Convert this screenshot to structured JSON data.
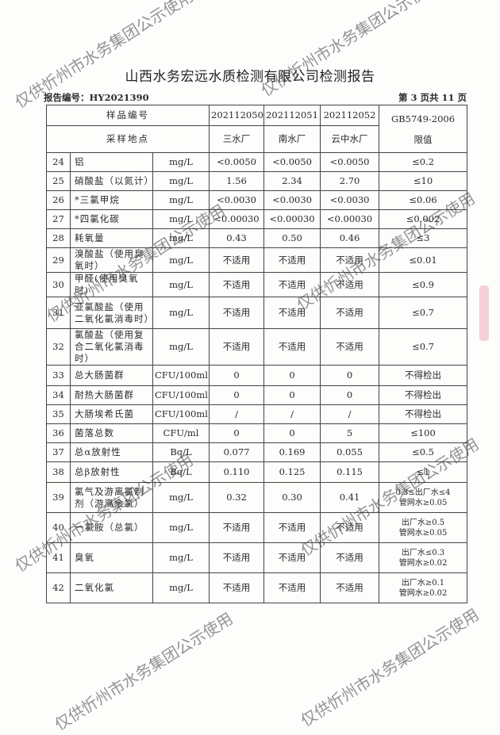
{
  "title": "山西水务宏远水质检测有限公司检测报告",
  "report_no": "报告编号：HY2021390",
  "page_no": "第 3 页共 11 页",
  "watermark": "仅供忻州市水务集团公示使用",
  "header": {
    "sample_no_label": "样品编号",
    "location_label": "采样地点",
    "samples": [
      "202112050",
      "202112051",
      "202112052"
    ],
    "locations": [
      "三水厂",
      "南水厂",
      "云中水厂"
    ],
    "limit_label": "GB5749-2006 限值"
  },
  "rows": [
    {
      "no": "24",
      "item": "铝",
      "unit": "mg/L",
      "v": [
        "<0.0050",
        "<0.0050",
        "<0.0050"
      ],
      "limit": "≤0.2"
    },
    {
      "no": "25",
      "item": "硝酸盐（以氮计）",
      "unit": "mg/L",
      "v": [
        "1.56",
        "2.34",
        "2.70"
      ],
      "limit": "≤10"
    },
    {
      "no": "26",
      "item": "*三氯甲烷",
      "unit": "mg/L",
      "v": [
        "<0.0030",
        "<0.0030",
        "<0.0030"
      ],
      "limit": "≤0.06"
    },
    {
      "no": "27",
      "item": "*四氯化碳",
      "unit": "mg/L",
      "v": [
        "<0.00030",
        "<0.00030",
        "<0.00030"
      ],
      "limit": "≤0.002"
    },
    {
      "no": "28",
      "item": "耗氧量",
      "unit": "mg/L",
      "v": [
        "0.43",
        "0.50",
        "0.46"
      ],
      "limit": "≤3"
    },
    {
      "no": "29",
      "item": "溴酸盐（使用臭氧时）",
      "unit": "mg/L",
      "v": [
        "不适用",
        "不适用",
        "不适用"
      ],
      "limit": "≤0.01"
    },
    {
      "no": "30",
      "item": "甲醛(使用臭氧时)",
      "unit": "mg/L",
      "v": [
        "不适用",
        "不适用",
        "不适用"
      ],
      "limit": "≤0.9"
    },
    {
      "no": "31",
      "item": "亚氯酸盐（使用二氧化氯消毒时）",
      "unit": "mg/L",
      "v": [
        "不适用",
        "不适用",
        "不适用"
      ],
      "limit": "≤0.7"
    },
    {
      "no": "32",
      "item": "氯酸盐（使用复合二氧化氯消毒时）",
      "unit": "mg/L",
      "v": [
        "不适用",
        "不适用",
        "不适用"
      ],
      "limit": "≤0.7"
    },
    {
      "no": "33",
      "item": "总大肠菌群",
      "unit": "CFU/100ml",
      "v": [
        "0",
        "0",
        "0"
      ],
      "limit": "不得检出"
    },
    {
      "no": "34",
      "item": "耐热大肠菌群",
      "unit": "CFU/100ml",
      "v": [
        "0",
        "0",
        "0"
      ],
      "limit": "不得检出"
    },
    {
      "no": "35",
      "item": "大肠埃希氏菌",
      "unit": "CFU/100ml",
      "v": [
        "/",
        "/",
        "/"
      ],
      "limit": "不得检出"
    },
    {
      "no": "36",
      "item": "菌落总数",
      "unit": "CFU/ml",
      "v": [
        "0",
        "0",
        "5"
      ],
      "limit": "≤100"
    },
    {
      "no": "37",
      "item": "总α放射性",
      "unit": "Bq/L",
      "v": [
        "0.077",
        "0.169",
        "0.055"
      ],
      "limit": "≤0.5"
    },
    {
      "no": "38",
      "item": "总β放射性",
      "unit": "Bq/L",
      "v": [
        "0.110",
        "0.125",
        "0.115"
      ],
      "limit": "≤1"
    },
    {
      "no": "39",
      "item": "氯气及游离氯制剂（游离余氯）",
      "unit": "mg/L",
      "v": [
        "0.32",
        "0.30",
        "0.41"
      ],
      "limit": "0.3≤出厂水≤4 管网水≥0.05"
    },
    {
      "no": "40",
      "item": "一氯胺（总氯）",
      "unit": "mg/L",
      "v": [
        "不适用",
        "不适用",
        "不适用"
      ],
      "limit": "出厂水≥0.5 管网水≥0.05"
    },
    {
      "no": "41",
      "item": "臭氧",
      "unit": "mg/L",
      "v": [
        "不适用",
        "不适用",
        "不适用"
      ],
      "limit": "出厂水≤0.3 管网水≥0.02"
    },
    {
      "no": "42",
      "item": "二氧化氯",
      "unit": "mg/L",
      "v": [
        "不适用",
        "不适用",
        "不适用"
      ],
      "limit": "出厂水≥0.1 管网水≥0.02"
    }
  ]
}
